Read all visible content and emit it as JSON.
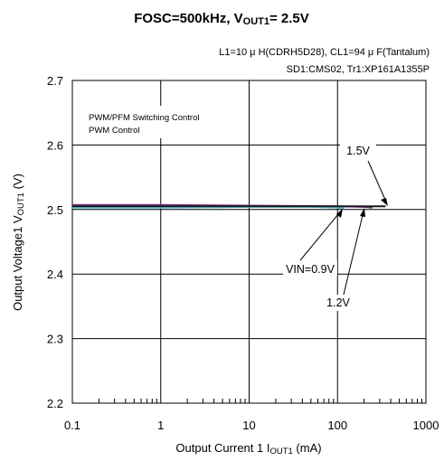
{
  "chart_data": {
    "type": "line",
    "title": "FOSC=500kHz, VOUT1= 2.5V",
    "title_parts": {
      "main": "FOSC=500kHz, V",
      "sub": "OUT1",
      "rest": "= 2.5V"
    },
    "conditions": [
      "L1=10 μ H(CDRH5D28), CL1=94 μ F(Tantalum)",
      "SD1:CMS02, Tr1:XP161A1355P"
    ],
    "legend": [
      "PWM/PFM Switching Control",
      "PWM  Control"
    ],
    "xlabel": "Output Current 1 IOUT1 (mA)",
    "xlabel_parts": {
      "main": "Output Current 1 I",
      "sub": "OUT1",
      "rest": " (mA)"
    },
    "ylabel": "Output Voltage1  VOUT1 (V)",
    "ylabel_parts": {
      "main": "Output Voltage1  V",
      "sub": "OUT1",
      "rest": " (V)"
    },
    "x_scale": "log",
    "xlim": [
      0.1,
      1000
    ],
    "ylim": [
      2.2,
      2.7
    ],
    "x_ticks": [
      "0.1",
      "1",
      "10",
      "100",
      "1000"
    ],
    "y_ticks": [
      "2.2",
      "2.3",
      "2.4",
      "2.5",
      "2.6",
      "2.7"
    ],
    "grid": true,
    "series": [
      {
        "name": "VIN=0.9V",
        "color": "#5ec8d8",
        "x": [
          0.1,
          1,
          10,
          50,
          100,
          120
        ],
        "y": [
          2.503,
          2.503,
          2.504,
          2.504,
          2.503,
          2.502
        ]
      },
      {
        "name": "1.2V",
        "color": "#7a2a80",
        "x": [
          0.1,
          1,
          10,
          100,
          200,
          250
        ],
        "y": [
          2.507,
          2.507,
          2.506,
          2.505,
          2.504,
          2.503
        ]
      },
      {
        "name": "1.5V",
        "color": "#1a1a1a",
        "x": [
          0.1,
          1,
          10,
          100,
          200,
          350
        ],
        "y": [
          2.505,
          2.505,
          2.505,
          2.505,
          2.505,
          2.505
        ]
      }
    ],
    "annotations": [
      "1.5V",
      "VIN=0.9V",
      "1.2V"
    ]
  }
}
